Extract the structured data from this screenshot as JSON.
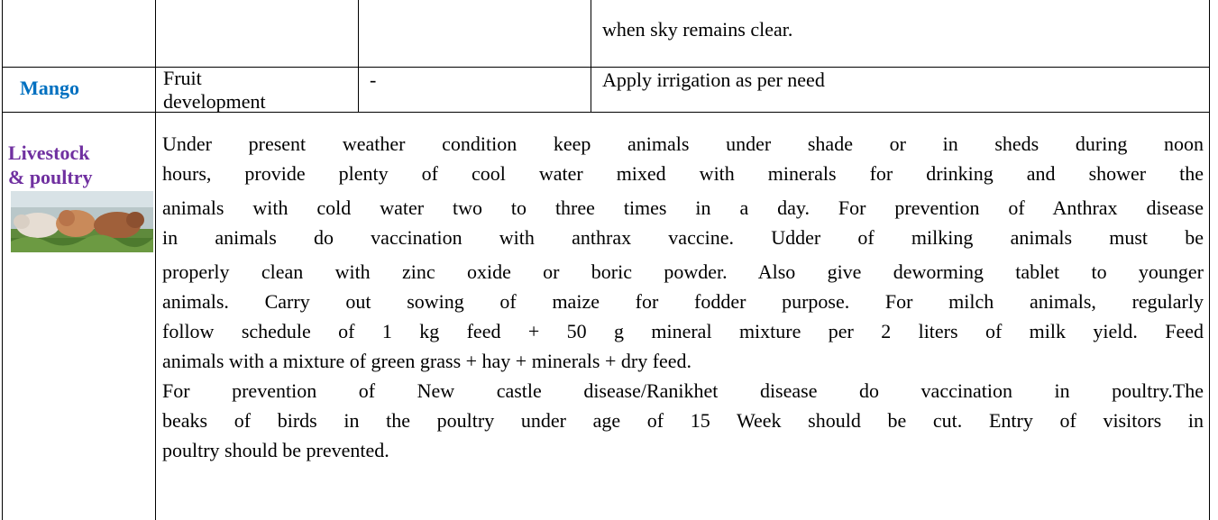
{
  "table": {
    "rows": [
      [
        "",
        "",
        "",
        "when sky remains clear."
      ],
      [
        "Mango",
        "Fruit development",
        "-",
        "Apply irrigation as per need"
      ]
    ],
    "livestock": {
      "title_lines": [
        "Livestock",
        "& poultry"
      ],
      "paragraphs": [
        {
          "lines": [
            "Under present weather condition keep animals under shade or in sheds during noon",
            "hours, provide plenty of cool water mixed with minerals for drinking and shower the",
            "animals with cold water two to three times in a day.  For prevention of Anthrax disease",
            "in animals do vaccination with  anthrax vaccine. Udder of milking animals must be",
            "properly clean with zinc oxide or boric powder. Also give deworming tablet to younger",
            "animals. Carry out sowing of maize for fodder purpose. For milch animals, regularly",
            "follow schedule of 1 kg feed + 50 g mineral mixture per 2 liters of milk yield. Feed",
            "animals with a mixture of green grass + hay + minerals + dry feed."
          ]
        },
        {
          "lines": [
            "For prevention of New castle disease/Ranikhet disease do vaccination in poultry.The",
            "beaks of birds in the poultry under age of 15 Week should be cut. Entry of visitors in",
            "poultry should be prevented."
          ]
        }
      ]
    }
  }
}
